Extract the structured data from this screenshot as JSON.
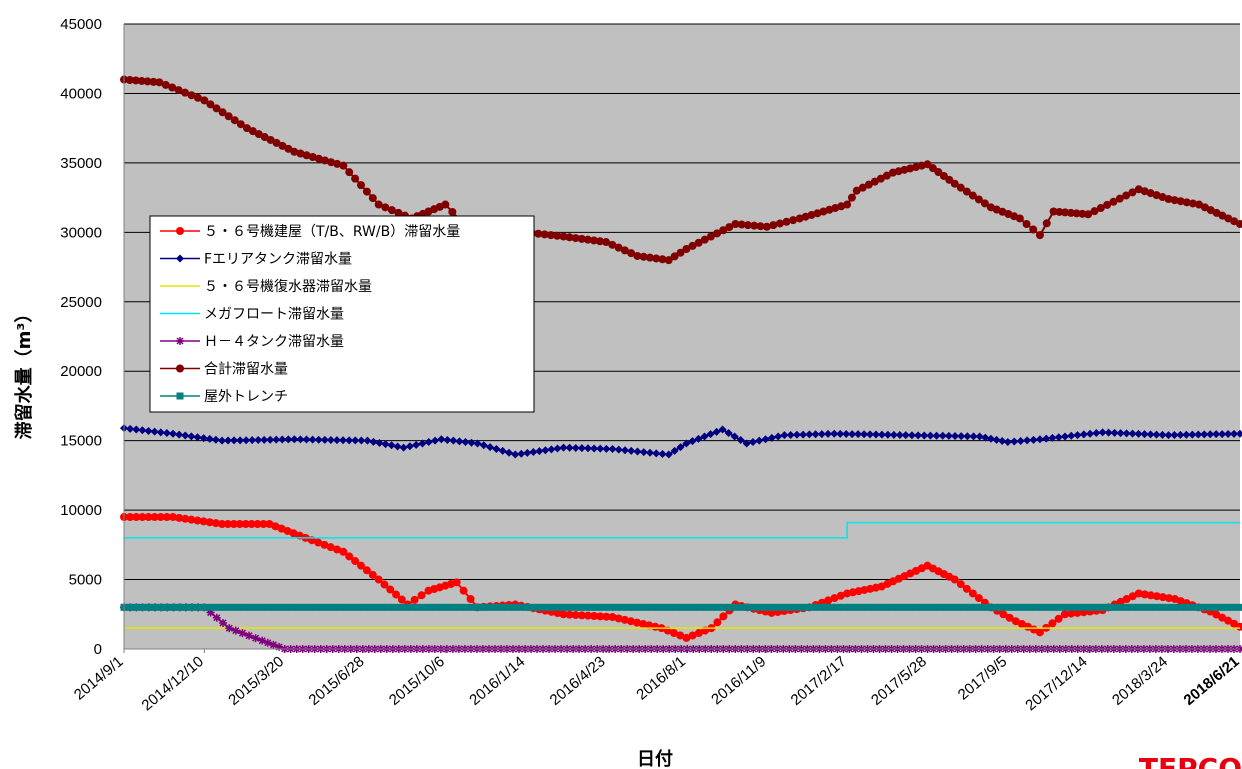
{
  "chart_data": {
    "type": "line",
    "xlabel": "日付",
    "ylabel": "滞留水量（m³）",
    "ylim": [
      0,
      45000
    ],
    "yticks": [
      0,
      5000,
      10000,
      15000,
      20000,
      25000,
      30000,
      35000,
      40000,
      45000
    ],
    "xticks": [
      "2014/9/1",
      "2014/12/10",
      "2015/3/20",
      "2015/6/28",
      "2015/10/6",
      "2016/1/14",
      "2016/4/23",
      "2016/8/1",
      "2016/11/9",
      "2017/2/17",
      "2017/5/28",
      "2017/9/5",
      "2017/12/14",
      "2018/3/24",
      "2018/6/21"
    ],
    "grid": true,
    "legend_position": "upper-left",
    "series": [
      {
        "name": "５・６号機建屋（T/B、RW/B）滞留水量",
        "color": "#ff0000",
        "marker": "circle",
        "x": [
          "2014/9/1",
          "2014/11/1",
          "2015/1/1",
          "2015/3/1",
          "2015/4/15",
          "2015/6/1",
          "2015/7/15",
          "2015/8/20",
          "2015/9/15",
          "2015/10/20",
          "2015/11/15",
          "2016/1/1",
          "2016/3/1",
          "2016/5/1",
          "2016/7/1",
          "2016/8/1",
          "2016/9/1",
          "2016/10/1",
          "2016/11/15",
          "2017/1/1",
          "2017/2/17",
          "2017/4/1",
          "2017/5/28",
          "2017/7/1",
          "2017/8/15",
          "2017/9/15",
          "2017/10/15",
          "2017/11/15",
          "2018/1/1",
          "2018/2/15",
          "2018/4/1",
          "2018/5/15",
          "2018/6/21"
        ],
        "y": [
          9500,
          9500,
          9000,
          9000,
          8000,
          7000,
          5000,
          3200,
          4200,
          4800,
          3000,
          3200,
          2500,
          2300,
          1500,
          800,
          1500,
          3200,
          2600,
          3000,
          4000,
          4500,
          6000,
          5000,
          3000,
          2000,
          1200,
          2500,
          2800,
          4000,
          3600,
          2700,
          1600
        ]
      },
      {
        "name": "Fエリアタンク滞留水量",
        "color": "#000080",
        "marker": "diamond",
        "x": [
          "2014/9/1",
          "2014/11/1",
          "2015/1/1",
          "2015/4/1",
          "2015/7/1",
          "2015/8/15",
          "2015/10/1",
          "2015/11/15",
          "2016/1/1",
          "2016/3/1",
          "2016/5/1",
          "2016/7/10",
          "2016/8/1",
          "2016/9/15",
          "2016/10/15",
          "2016/12/1",
          "2017/2/1",
          "2017/5/1",
          "2017/8/1",
          "2017/9/5",
          "2017/10/15",
          "2018/1/1",
          "2018/3/24",
          "2018/6/21"
        ],
        "y": [
          15900,
          15500,
          15000,
          15100,
          15000,
          14500,
          15100,
          14800,
          14000,
          14500,
          14400,
          14000,
          14800,
          15800,
          14800,
          15400,
          15500,
          15400,
          15300,
          14900,
          15100,
          15600,
          15400,
          15500
        ]
      },
      {
        "name": "５・６号機復水器滞留水量",
        "color": "#e6e600",
        "marker": "none",
        "x": [
          "2014/9/1",
          "2018/6/21"
        ],
        "y": [
          1500,
          1500
        ]
      },
      {
        "name": "メガフロート滞留水量",
        "color": "#00e5ee",
        "marker": "none",
        "step": true,
        "x": [
          "2014/9/1",
          "2017/2/17",
          "2017/2/17",
          "2018/6/21"
        ],
        "y": [
          8000,
          8000,
          9100,
          9100
        ]
      },
      {
        "name": "Ｈ－４タンク滞留水量",
        "color": "#800080",
        "marker": "star",
        "x": [
          "2014/9/1",
          "2014/12/10",
          "2015/1/10",
          "2015/2/20",
          "2015/3/20",
          "2018/6/21"
        ],
        "y": [
          3000,
          3000,
          1500,
          600,
          0,
          0
        ]
      },
      {
        "name": "合計滞留水量",
        "color": "#800000",
        "marker": "circle",
        "x": [
          "2014/9/1",
          "2014/10/15",
          "2014/12/10",
          "2015/2/1",
          "2015/4/1",
          "2015/6/1",
          "2015/7/15",
          "2015/8/25",
          "2015/10/6",
          "2015/11/1",
          "2016/1/14",
          "2016/3/1",
          "2016/4/23",
          "2016/6/1",
          "2016/7/10",
          "2016/8/1",
          "2016/10/1",
          "2016/11/9",
          "2016/12/20",
          "2017/2/17",
          "2017/3/1",
          "2017/4/15",
          "2017/5/28",
          "2017/7/1",
          "2017/8/15",
          "2017/9/20",
          "2017/10/15",
          "2017/11/1",
          "2017/12/14",
          "2018/2/15",
          "2018/3/24",
          "2018/5/1",
          "2018/6/21"
        ],
        "y": [
          41000,
          40800,
          39500,
          37500,
          35800,
          34800,
          32000,
          31000,
          32000,
          30400,
          30000,
          29700,
          29300,
          28300,
          28000,
          28800,
          30600,
          30400,
          31000,
          32000,
          33000,
          34300,
          34900,
          33500,
          31800,
          31000,
          29800,
          31500,
          31300,
          33100,
          32400,
          32000,
          30600
        ]
      },
      {
        "name": "屋外トレンチ",
        "color": "#008080",
        "marker": "square",
        "x": [
          "2014/9/1",
          "2018/6/21"
        ],
        "y": [
          3000,
          3000
        ]
      }
    ]
  },
  "logo_text": "TEPCO"
}
